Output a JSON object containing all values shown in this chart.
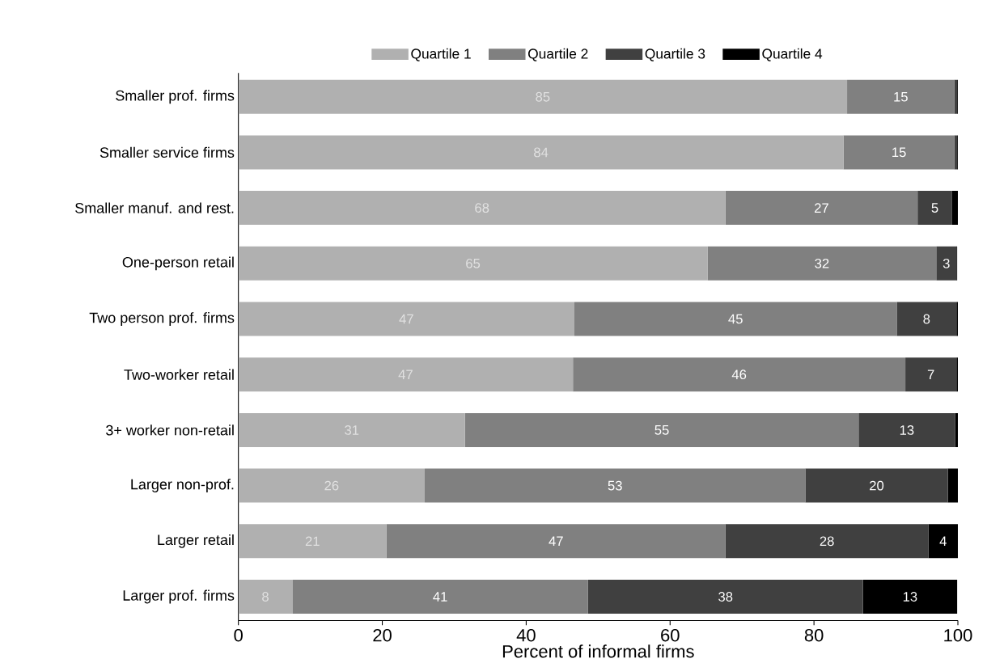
{
  "chart_data": {
    "type": "bar",
    "orientation": "horizontal",
    "stacked": true,
    "xlabel": "Percent of informal firms",
    "categories": [
      "Smaller prof. firms",
      "Smaller service firms",
      "Smaller manuf. and rest.",
      "One-person retail",
      "Two person prof. firms",
      "Two-worker retail",
      "3+ worker non-retail",
      "Larger non-prof.",
      "Larger retail",
      "Larger prof. firms"
    ],
    "series": [
      {
        "name": "Quartile 1",
        "color": "#b0b0b0",
        "values": [
          84.6,
          84.1,
          67.7,
          65.2,
          46.7,
          46.5,
          31.5,
          25.9,
          20.6,
          7.5
        ],
        "value_labels": [
          "85",
          "84",
          "68",
          "65",
          "47",
          "47",
          "31",
          "26",
          "21",
          "8"
        ]
      },
      {
        "name": "Quartile 2",
        "color": "#808080",
        "values": [
          14.9,
          15.4,
          26.7,
          31.8,
          44.8,
          46.2,
          54.7,
          52.9,
          47.1,
          41.1
        ],
        "value_labels": [
          "15",
          "15",
          "27",
          "32",
          "45",
          "46",
          "55",
          "53",
          "47",
          "41"
        ]
      },
      {
        "name": "Quartile 3",
        "color": "#404040",
        "values": [
          0.4,
          0.4,
          4.8,
          2.8,
          8.3,
          7.1,
          13.4,
          19.8,
          28.2,
          38.2
        ],
        "value_labels": [
          null,
          null,
          "5",
          "3",
          "8",
          "7",
          "13",
          "20",
          "28",
          "38"
        ]
      },
      {
        "name": "Quartile 4",
        "color": "#000000",
        "values": [
          0.1,
          0.1,
          0.8,
          0.1,
          0.2,
          0.2,
          0.4,
          1.4,
          4.1,
          13.1
        ],
        "value_labels": [
          null,
          null,
          null,
          null,
          null,
          null,
          null,
          null,
          "4",
          "13"
        ]
      }
    ],
    "xlim": [
      0,
      100
    ],
    "xticks": [
      0,
      20,
      40,
      60,
      80,
      100
    ],
    "legend": "top"
  }
}
